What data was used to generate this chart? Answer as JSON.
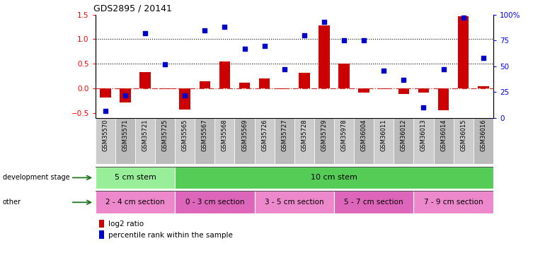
{
  "title": "GDS2895 / 20141",
  "samples": [
    "GSM35570",
    "GSM35571",
    "GSM35721",
    "GSM35725",
    "GSM35565",
    "GSM35567",
    "GSM35568",
    "GSM35569",
    "GSM35726",
    "GSM35727",
    "GSM35728",
    "GSM35729",
    "GSM35978",
    "GSM36004",
    "GSM36011",
    "GSM36012",
    "GSM36013",
    "GSM36014",
    "GSM36015",
    "GSM36016"
  ],
  "log2_ratio": [
    -0.18,
    -0.28,
    0.33,
    -0.02,
    -0.43,
    0.15,
    0.55,
    0.12,
    0.2,
    -0.02,
    0.32,
    1.28,
    0.5,
    -0.08,
    -0.01,
    -0.12,
    -0.08,
    -0.45,
    1.47,
    0.04
  ],
  "percentile": [
    7,
    22,
    82,
    52,
    22,
    85,
    88,
    67,
    70,
    47,
    80,
    93,
    75,
    75,
    46,
    37,
    10,
    47,
    97,
    58
  ],
  "dev_stage_groups": [
    {
      "label": "5 cm stem",
      "start": 0,
      "end": 4,
      "color": "#99EE99"
    },
    {
      "label": "10 cm stem",
      "start": 4,
      "end": 20,
      "color": "#55CC55"
    }
  ],
  "other_groups": [
    {
      "label": "2 - 4 cm section",
      "start": 0,
      "end": 4,
      "color": "#EE88CC"
    },
    {
      "label": "0 - 3 cm section",
      "start": 4,
      "end": 8,
      "color": "#DD66BB"
    },
    {
      "label": "3 - 5 cm section",
      "start": 8,
      "end": 12,
      "color": "#EE88CC"
    },
    {
      "label": "5 - 7 cm section",
      "start": 12,
      "end": 16,
      "color": "#DD66BB"
    },
    {
      "label": "7 - 9 cm section",
      "start": 16,
      "end": 20,
      "color": "#EE88CC"
    }
  ],
  "ylim_left": [
    -0.6,
    1.5
  ],
  "ylim_right": [
    0,
    100
  ],
  "yticks_left": [
    -0.5,
    0.0,
    0.5,
    1.0,
    1.5
  ],
  "yticks_right": [
    0,
    25,
    50,
    75,
    100
  ],
  "hlines": [
    0.5,
    1.0
  ],
  "bar_color": "#CC0000",
  "dot_color": "#0000CC",
  "zero_line_color": "#CC3333",
  "col_colors": [
    "#CCCCCC",
    "#BBBBBB"
  ]
}
